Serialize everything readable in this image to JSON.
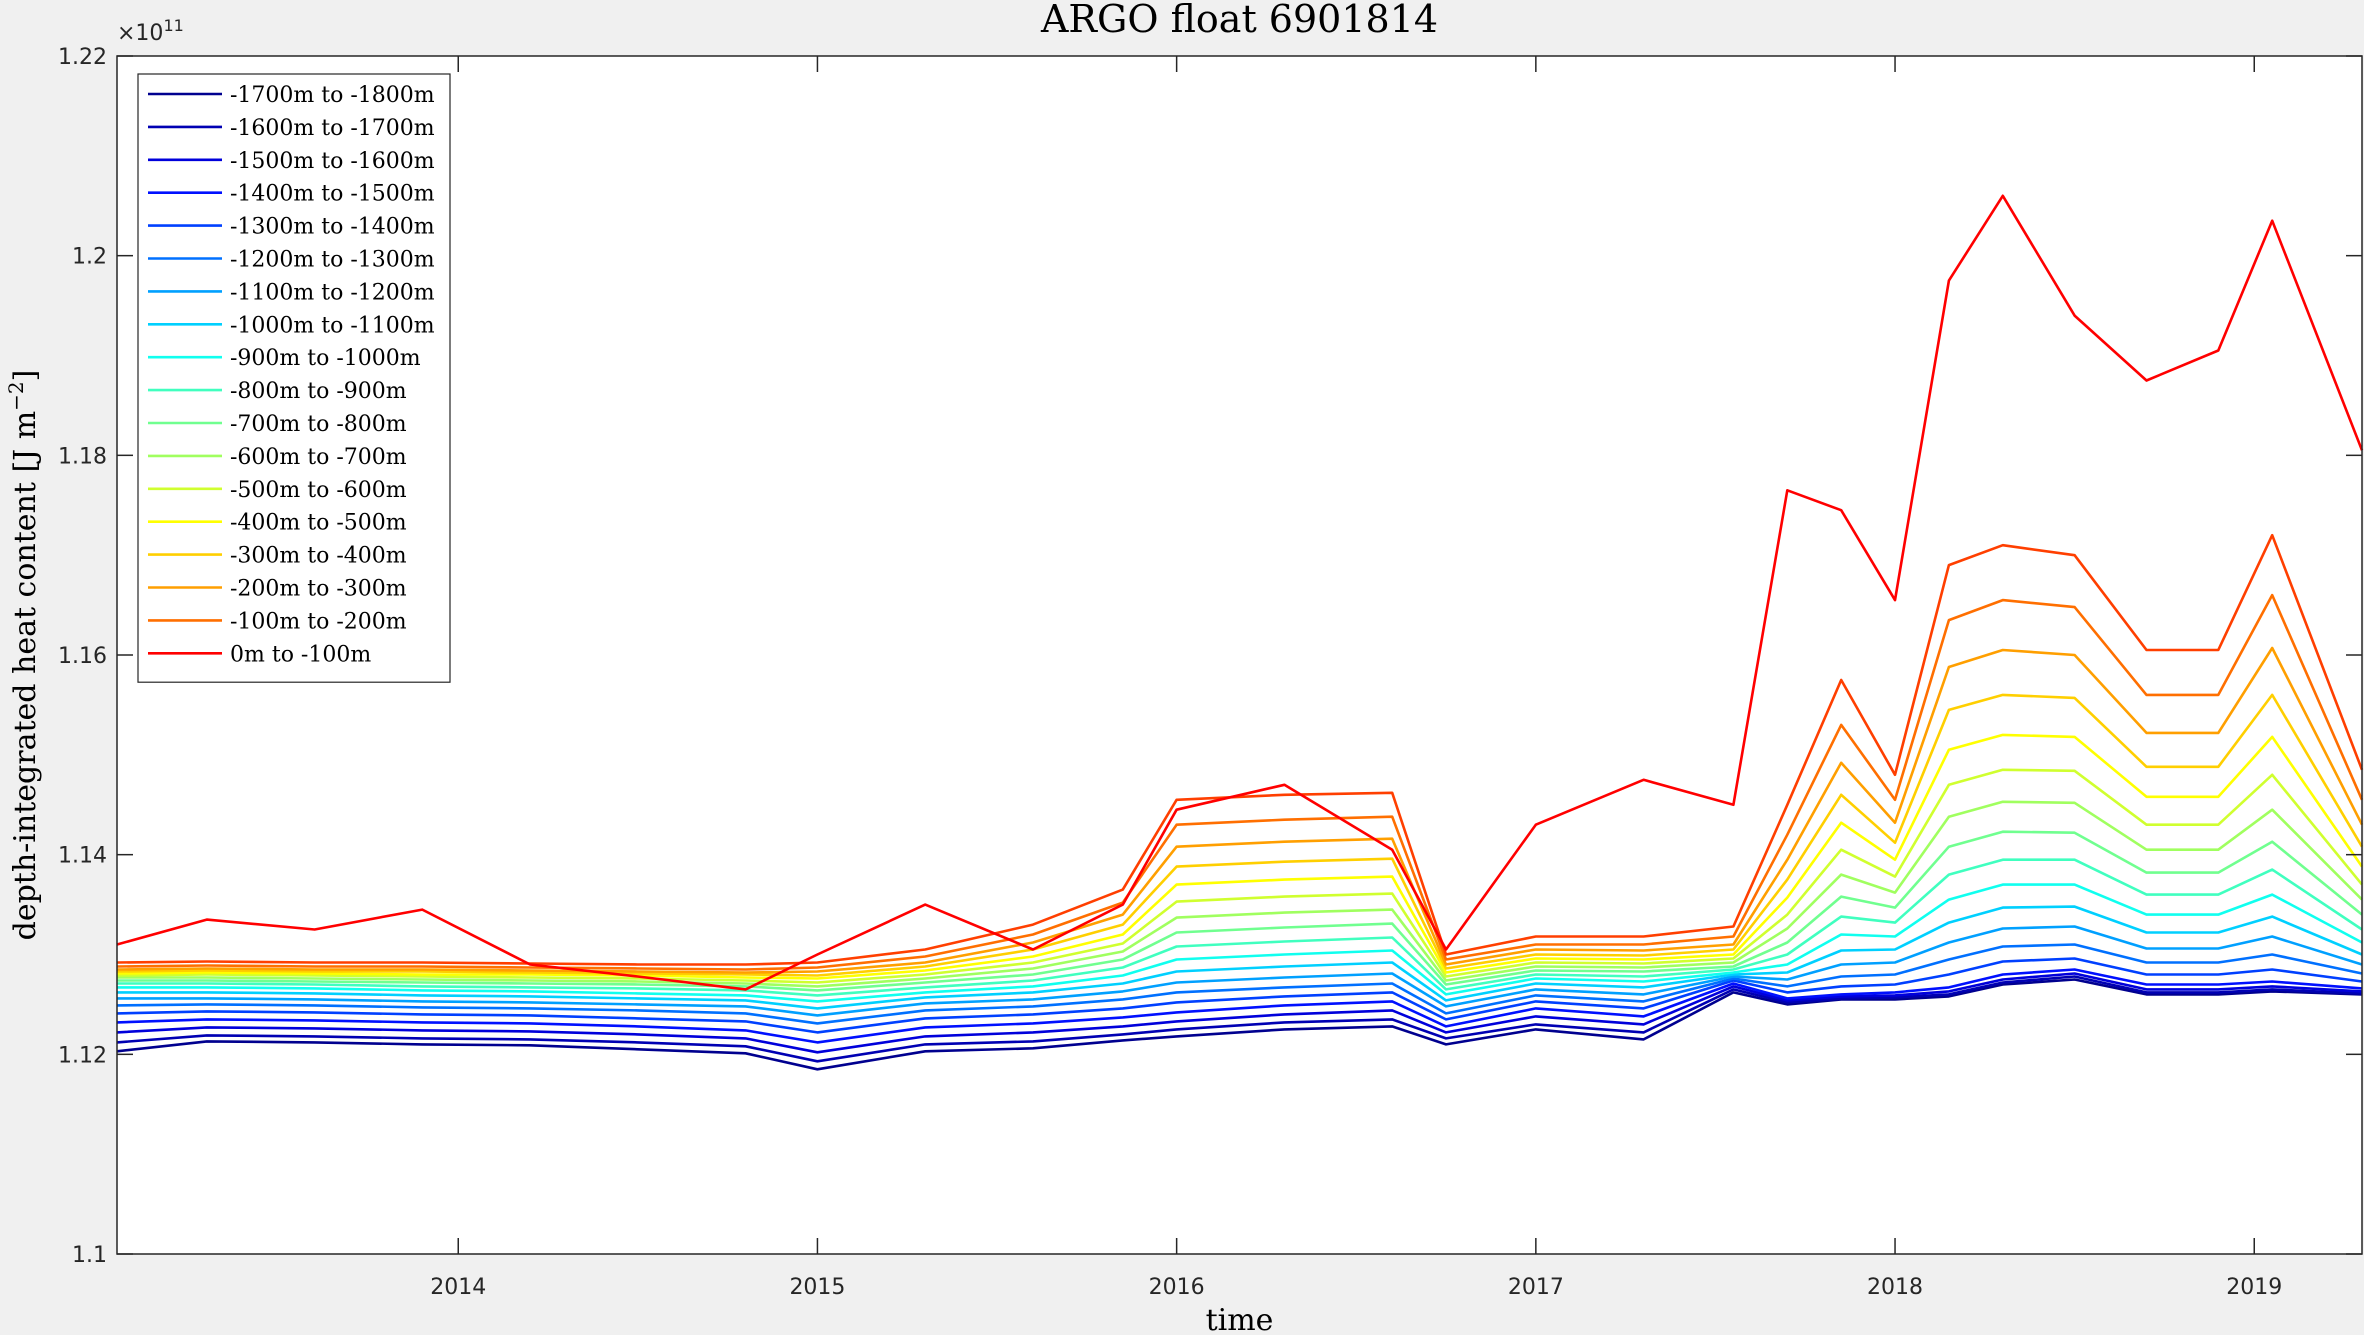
{
  "chart_data": {
    "type": "line",
    "title": "ARGO float 6901814",
    "xlabel": "time",
    "ylabel": "depth-integrated heat content [J m",
    "ylabel_unit_exponent": "−2",
    "ylabel_close": "]",
    "y_exponent_base": "×10",
    "y_exponent_power": "11",
    "xlim": [
      2013.05,
      2019.3
    ],
    "ylim": [
      1.1,
      1.22
    ],
    "x_ticks": [
      2014,
      2015,
      2016,
      2017,
      2018,
      2019
    ],
    "x_tick_labels": [
      "2014",
      "2015",
      "2016",
      "2017",
      "2018",
      "2019"
    ],
    "y_ticks": [
      1.1,
      1.12,
      1.14,
      1.16,
      1.18,
      1.2,
      1.22
    ],
    "y_tick_labels": [
      "1.1",
      "1.12",
      "1.14",
      "1.16",
      "1.18",
      "1.2",
      "1.22"
    ],
    "grid": false,
    "legend_position": "top-left",
    "x": [
      2013.05,
      2013.3,
      2013.6,
      2013.9,
      2014.2,
      2014.5,
      2014.8,
      2015.0,
      2015.3,
      2015.6,
      2015.85,
      2016.0,
      2016.3,
      2016.6,
      2016.75,
      2017.0,
      2017.3,
      2017.55,
      2017.7,
      2017.85,
      2018.0,
      2018.15,
      2018.3,
      2018.5,
      2018.7,
      2018.9,
      2019.05,
      2019.3
    ],
    "series": [
      {
        "name": "-1700m to -1800m",
        "color": "#00008f",
        "values": [
          1.1203,
          1.1213,
          1.1212,
          1.121,
          1.1209,
          1.1205,
          1.1201,
          1.1185,
          1.1203,
          1.1206,
          1.1214,
          1.1218,
          1.1225,
          1.1228,
          1.121,
          1.1225,
          1.1215,
          1.1262,
          1.125,
          1.1255,
          1.1255,
          1.1258,
          1.127,
          1.1275,
          1.126,
          1.126,
          1.1263,
          1.126
        ]
      },
      {
        "name": "-1600m to -1700m",
        "color": "#0000b3",
        "values": [
          1.1212,
          1.1219,
          1.1218,
          1.1216,
          1.1215,
          1.1212,
          1.1208,
          1.1193,
          1.121,
          1.1213,
          1.122,
          1.1225,
          1.1232,
          1.1235,
          1.1216,
          1.123,
          1.1222,
          1.1265,
          1.1252,
          1.1256,
          1.1257,
          1.126,
          1.1272,
          1.1278,
          1.1262,
          1.1262,
          1.1265,
          1.1261
        ]
      },
      {
        "name": "-1500m to -1600m",
        "color": "#0000db",
        "values": [
          1.1222,
          1.1227,
          1.1226,
          1.1224,
          1.1223,
          1.122,
          1.1216,
          1.1202,
          1.1218,
          1.1222,
          1.1228,
          1.1233,
          1.124,
          1.1244,
          1.1222,
          1.1238,
          1.123,
          1.1268,
          1.1254,
          1.1258,
          1.1259,
          1.1263,
          1.1275,
          1.1281,
          1.1265,
          1.1265,
          1.1268,
          1.1263
        ]
      },
      {
        "name": "-1400m to -1500m",
        "color": "#0010ff",
        "values": [
          1.1232,
          1.1235,
          1.1234,
          1.1232,
          1.1231,
          1.1228,
          1.1224,
          1.1212,
          1.1227,
          1.1231,
          1.1237,
          1.1242,
          1.1249,
          1.1253,
          1.1228,
          1.1246,
          1.1238,
          1.1271,
          1.1256,
          1.126,
          1.1262,
          1.1267,
          1.128,
          1.1285,
          1.127,
          1.127,
          1.1273,
          1.1266
        ]
      },
      {
        "name": "-1300m to -1400m",
        "color": "#0040ff",
        "values": [
          1.1241,
          1.1243,
          1.1242,
          1.124,
          1.1239,
          1.1236,
          1.1233,
          1.1222,
          1.1236,
          1.124,
          1.1246,
          1.1252,
          1.1258,
          1.1262,
          1.1235,
          1.1253,
          1.1246,
          1.1274,
          1.1262,
          1.1268,
          1.127,
          1.128,
          1.1293,
          1.1296,
          1.128,
          1.128,
          1.1285,
          1.1273
        ]
      },
      {
        "name": "-1200m to -1300m",
        "color": "#0070ff",
        "values": [
          1.1249,
          1.125,
          1.1249,
          1.1247,
          1.1246,
          1.1244,
          1.1241,
          1.1231,
          1.1244,
          1.1248,
          1.1255,
          1.1262,
          1.1267,
          1.1271,
          1.1241,
          1.1259,
          1.1253,
          1.1276,
          1.1268,
          1.1278,
          1.128,
          1.1295,
          1.1308,
          1.131,
          1.1292,
          1.1292,
          1.13,
          1.1281
        ]
      },
      {
        "name": "-1100m to -1200m",
        "color": "#00a0ff",
        "values": [
          1.1256,
          1.1256,
          1.1255,
          1.1253,
          1.1252,
          1.125,
          1.1248,
          1.1239,
          1.1251,
          1.1255,
          1.1263,
          1.1272,
          1.1277,
          1.1281,
          1.1248,
          1.1265,
          1.126,
          1.1278,
          1.1275,
          1.129,
          1.1292,
          1.1312,
          1.1326,
          1.1328,
          1.1306,
          1.1306,
          1.1318,
          1.129
        ]
      },
      {
        "name": "-1000m to -1100m",
        "color": "#00d0ff",
        "values": [
          1.1262,
          1.1262,
          1.1261,
          1.1259,
          1.1258,
          1.1256,
          1.1254,
          1.1246,
          1.1257,
          1.1262,
          1.1271,
          1.1283,
          1.1288,
          1.1292,
          1.1254,
          1.1271,
          1.1267,
          1.128,
          1.1282,
          1.1304,
          1.1305,
          1.1332,
          1.1347,
          1.1348,
          1.1322,
          1.1322,
          1.1338,
          1.13
        ]
      },
      {
        "name": "-900m to -1000m",
        "color": "#10ffef",
        "values": [
          1.1267,
          1.1267,
          1.1266,
          1.1264,
          1.1263,
          1.1261,
          1.1259,
          1.1253,
          1.1262,
          1.1268,
          1.1279,
          1.1295,
          1.13,
          1.1304,
          1.126,
          1.1276,
          1.1273,
          1.1282,
          1.129,
          1.132,
          1.1318,
          1.1355,
          1.137,
          1.137,
          1.134,
          1.134,
          1.136,
          1.1312
        ]
      },
      {
        "name": "-800m to -900m",
        "color": "#40ffbf",
        "values": [
          1.1271,
          1.1271,
          1.127,
          1.1268,
          1.1267,
          1.1266,
          1.1264,
          1.1259,
          1.1267,
          1.1274,
          1.1287,
          1.1308,
          1.1313,
          1.1317,
          1.1265,
          1.128,
          1.1278,
          1.1285,
          1.13,
          1.1338,
          1.1332,
          1.138,
          1.1395,
          1.1395,
          1.136,
          1.136,
          1.1385,
          1.1325
        ]
      },
      {
        "name": "-700m to -800m",
        "color": "#70ff8f",
        "values": [
          1.1274,
          1.1274,
          1.1273,
          1.1272,
          1.1271,
          1.127,
          1.1268,
          1.1264,
          1.1272,
          1.128,
          1.1295,
          1.1322,
          1.1327,
          1.1331,
          1.127,
          1.1284,
          1.1283,
          1.1288,
          1.1312,
          1.1358,
          1.1347,
          1.1408,
          1.1423,
          1.1422,
          1.1382,
          1.1382,
          1.1413,
          1.134
        ]
      },
      {
        "name": "-600m to -700m",
        "color": "#a0ff5f",
        "values": [
          1.1277,
          1.1277,
          1.1276,
          1.1275,
          1.1274,
          1.1273,
          1.1271,
          1.1268,
          1.1276,
          1.1286,
          1.1303,
          1.1337,
          1.1342,
          1.1345,
          1.1274,
          1.1288,
          1.1287,
          1.1292,
          1.1326,
          1.138,
          1.1362,
          1.1438,
          1.1453,
          1.1452,
          1.1405,
          1.1405,
          1.1445,
          1.1355
        ]
      },
      {
        "name": "-500m to -600m",
        "color": "#d0ff2f",
        "values": [
          1.1279,
          1.128,
          1.1279,
          1.1278,
          1.1277,
          1.1276,
          1.1274,
          1.1272,
          1.128,
          1.1292,
          1.1311,
          1.1353,
          1.1358,
          1.1361,
          1.1278,
          1.1292,
          1.1291,
          1.1296,
          1.134,
          1.1405,
          1.1378,
          1.147,
          1.1485,
          1.1484,
          1.143,
          1.143,
          1.148,
          1.137
        ]
      },
      {
        "name": "-400m to -500m",
        "color": "#ffff00",
        "values": [
          1.1281,
          1.1282,
          1.1281,
          1.128,
          1.128,
          1.1279,
          1.1277,
          1.1276,
          1.1284,
          1.1298,
          1.132,
          1.137,
          1.1375,
          1.1378,
          1.1282,
          1.1296,
          1.1295,
          1.13,
          1.1357,
          1.1432,
          1.1395,
          1.1505,
          1.152,
          1.1518,
          1.1458,
          1.1458,
          1.1518,
          1.1388
        ]
      },
      {
        "name": "-300m to -400m",
        "color": "#ffcf00",
        "values": [
          1.1283,
          1.1284,
          1.1283,
          1.1283,
          1.1282,
          1.1281,
          1.128,
          1.1279,
          1.1288,
          1.1305,
          1.133,
          1.1388,
          1.1393,
          1.1396,
          1.1286,
          1.13,
          1.1299,
          1.1305,
          1.1375,
          1.146,
          1.1412,
          1.1545,
          1.156,
          1.1557,
          1.1488,
          1.1488,
          1.156,
          1.1408
        ]
      },
      {
        "name": "-200m to -300m",
        "color": "#ff9f00",
        "values": [
          1.1285,
          1.1286,
          1.1285,
          1.1285,
          1.1284,
          1.1283,
          1.1282,
          1.1283,
          1.1292,
          1.1312,
          1.134,
          1.1408,
          1.1413,
          1.1416,
          1.129,
          1.1305,
          1.1304,
          1.131,
          1.1395,
          1.1492,
          1.1432,
          1.1588,
          1.1605,
          1.16,
          1.1522,
          1.1522,
          1.1607,
          1.143
        ]
      },
      {
        "name": "-100m to -200m",
        "color": "#ff6f00",
        "values": [
          1.1288,
          1.1289,
          1.1288,
          1.1288,
          1.1287,
          1.1286,
          1.1285,
          1.1287,
          1.1298,
          1.132,
          1.1352,
          1.143,
          1.1435,
          1.1438,
          1.1295,
          1.131,
          1.131,
          1.1318,
          1.142,
          1.153,
          1.1455,
          1.1635,
          1.1655,
          1.1648,
          1.156,
          1.156,
          1.166,
          1.1455
        ]
      },
      {
        "name": "0m to -100m",
        "color": "#ff3f00",
        "values": [
          1.1292,
          1.1293,
          1.1292,
          1.1292,
          1.1291,
          1.129,
          1.129,
          1.1292,
          1.1305,
          1.133,
          1.1365,
          1.1455,
          1.146,
          1.1462,
          1.13,
          1.1318,
          1.1318,
          1.1328,
          1.145,
          1.1575,
          1.148,
          1.169,
          1.171,
          1.17,
          1.1605,
          1.1605,
          1.172,
          1.1485
        ]
      },
      {
        "name": "0m to -100m",
        "color": "#ff0000",
        "values": [
          1.131,
          1.1335,
          1.1325,
          1.1345,
          1.129,
          1.1278,
          1.1265,
          1.13,
          1.135,
          1.1305,
          1.135,
          1.1445,
          1.147,
          1.1405,
          1.1305,
          1.143,
          1.1475,
          1.145,
          1.1765,
          1.1745,
          1.1655,
          1.1975,
          1.206,
          1.194,
          1.1875,
          1.1905,
          1.2035,
          1.1805
        ]
      }
    ],
    "legend": [
      "-1700m to -1800m",
      "-1600m to -1700m",
      "-1500m to -1600m",
      "-1400m to -1500m",
      "-1300m to -1400m",
      "-1200m to -1300m",
      "-1100m to -1200m",
      "-1000m to -1100m",
      "-900m to -1000m",
      "-800m to -900m",
      "-700m to -800m",
      "-600m to -700m",
      "-500m to -600m",
      "-400m to -500m",
      "-300m to -400m",
      "-200m to -300m",
      "-100m to -200m",
      "0m to -100m"
    ],
    "legend_colors": [
      "#00008f",
      "#0000b3",
      "#0000db",
      "#0010ff",
      "#0040ff",
      "#0070ff",
      "#00a0ff",
      "#00d0ff",
      "#10ffef",
      "#40ffbf",
      "#70ff8f",
      "#a0ff5f",
      "#d0ff2f",
      "#ffff00",
      "#ffcf00",
      "#ff9f00",
      "#ff6f00",
      "#ff0000"
    ]
  }
}
